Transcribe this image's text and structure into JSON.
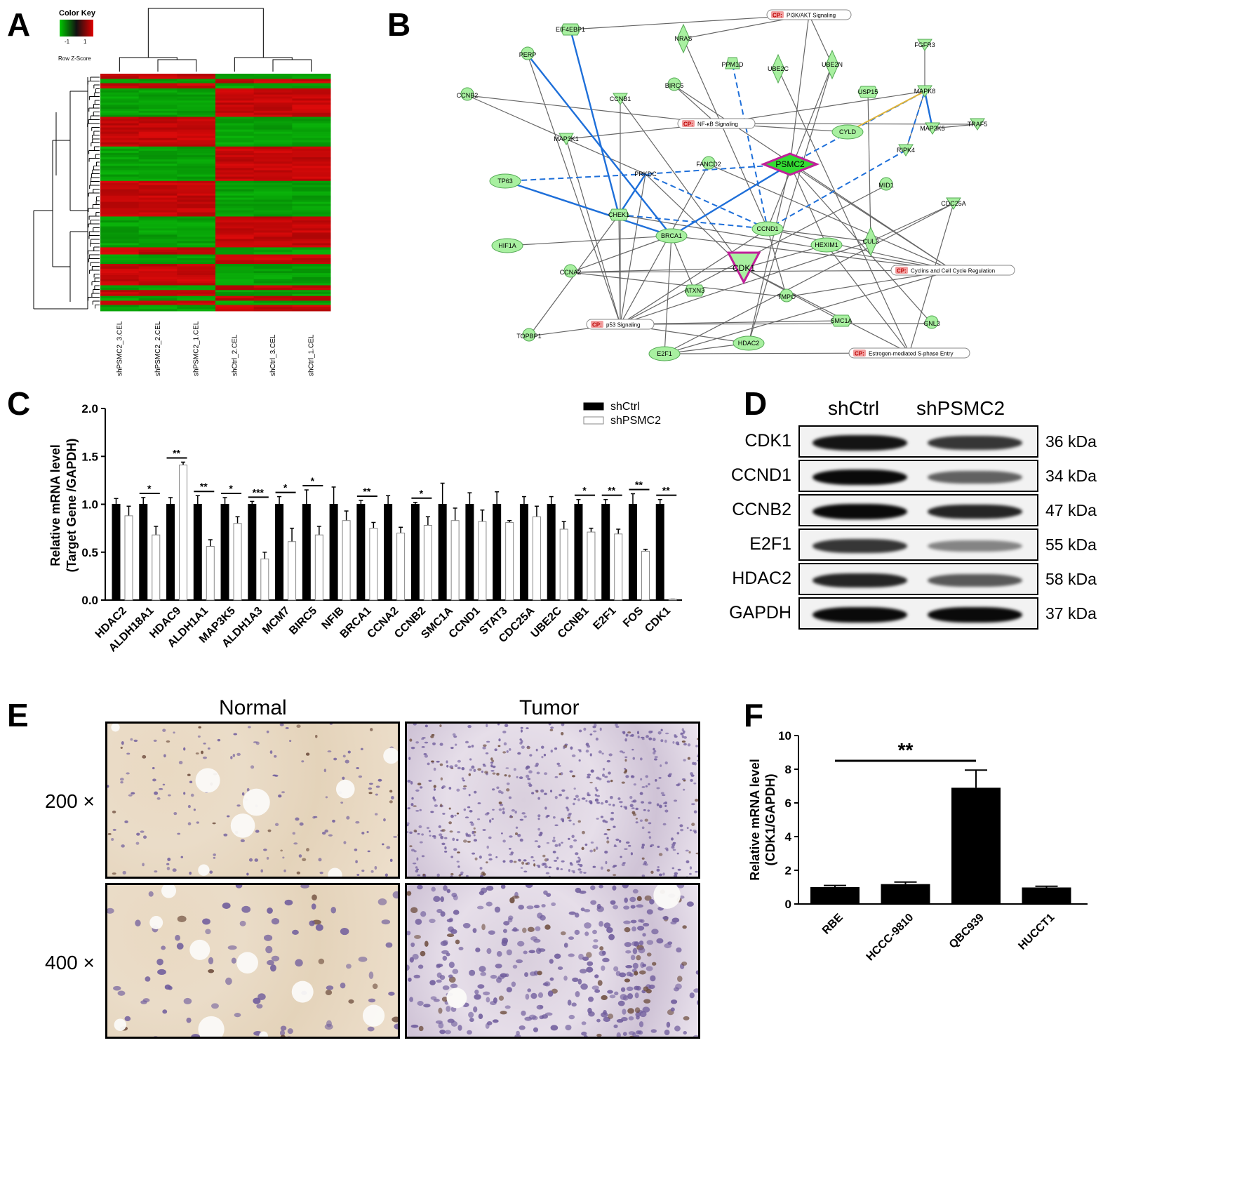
{
  "panels": {
    "a": "A",
    "b": "B",
    "c": "C",
    "d": "D",
    "e": "E",
    "f": "F"
  },
  "heatmap": {
    "color_key_title": "Color Key",
    "color_key_ticks": [
      "-1",
      "1"
    ],
    "color_key_label": "Row Z-Score",
    "columns": [
      "shPSMC2_3.CEL",
      "shPSMC2_2.CEL",
      "shPSMC2_1.CEL",
      "shCtrl_2.CEL",
      "shCtrl_3.CEL",
      "shCtrl_1.CEL"
    ]
  },
  "network": {
    "nodes": [
      {
        "id": "EIF4EBP1",
        "shape": "hex"
      },
      {
        "id": "PERP",
        "shape": "circle"
      },
      {
        "id": "CCNB2",
        "shape": "circle"
      },
      {
        "id": "NRAS",
        "shape": "diamond"
      },
      {
        "id": "PPM1D",
        "shape": "trapezoid"
      },
      {
        "id": "UBE2C",
        "shape": "diamond"
      },
      {
        "id": "UBE2N",
        "shape": "diamond"
      },
      {
        "id": "FGFR3",
        "shape": "triangle"
      },
      {
        "id": "USP15",
        "shape": "hex"
      },
      {
        "id": "MAPK8",
        "shape": "triangle"
      },
      {
        "id": "BIRC5",
        "shape": "circle"
      },
      {
        "id": "CCNB1",
        "shape": "triangle"
      },
      {
        "id": "MAP3K1",
        "shape": "triangle"
      },
      {
        "id": "CYLD",
        "shape": "ellipse"
      },
      {
        "id": "MAP3K5",
        "shape": "triangle"
      },
      {
        "id": "TRAF5",
        "shape": "triangle"
      },
      {
        "id": "RIPK4",
        "shape": "triangle"
      },
      {
        "id": "FANCD2",
        "shape": "circle"
      },
      {
        "id": "PSMC2",
        "shape": "diamond",
        "highlight": true
      },
      {
        "id": "PRKDC",
        "shape": "none"
      },
      {
        "id": "TP63",
        "shape": "ellipse"
      },
      {
        "id": "MID1",
        "shape": "circle"
      },
      {
        "id": "CDC25A",
        "shape": "triangle"
      },
      {
        "id": "CHEK1",
        "shape": "hex"
      },
      {
        "id": "CCND1",
        "shape": "ellipse"
      },
      {
        "id": "BRCA1",
        "shape": "ellipse"
      },
      {
        "id": "HIF1A",
        "shape": "ellipse"
      },
      {
        "id": "HEXIM1",
        "shape": "ellipse"
      },
      {
        "id": "CUL3",
        "shape": "diamond"
      },
      {
        "id": "CDK1",
        "shape": "triangle-down",
        "highlight": true
      },
      {
        "id": "CCNA2",
        "shape": "circle"
      },
      {
        "id": "ATXN3",
        "shape": "hex"
      },
      {
        "id": "TMPO",
        "shape": "circle"
      },
      {
        "id": "SMC1A",
        "shape": "hex"
      },
      {
        "id": "GNL3",
        "shape": "circle"
      },
      {
        "id": "TOPBP1",
        "shape": "circle"
      },
      {
        "id": "HDAC2",
        "shape": "ellipse"
      },
      {
        "id": "E2F1",
        "shape": "ellipse"
      }
    ],
    "pathways": [
      {
        "cp": "CP:",
        "name": "PI3K/AKT Signaling"
      },
      {
        "cp": "CP:",
        "name": "NF-κB Signaling"
      },
      {
        "cp": "CP:",
        "name": "Cyclins and Cell Cycle Regulation"
      },
      {
        "cp": "CP:",
        "name": "p53 Signaling"
      },
      {
        "cp": "CP:",
        "name": "Estrogen-mediated S-phase Entry"
      }
    ]
  },
  "chart_data": [
    {
      "panel": "C",
      "type": "bar",
      "ylabel_line1": "Relative mRNA level",
      "ylabel_line2": "(Target Gene /GAPDH)",
      "ylim": [
        0,
        2.0
      ],
      "yticks": [
        "0.0",
        "0.5",
        "1.0",
        "1.5",
        "2.0"
      ],
      "categories": [
        "HDAC2",
        "ALDH18A1",
        "HDAC9",
        "ALDH1A1",
        "MAP3K5",
        "ALDH1A3",
        "MCM7",
        "BIRC5",
        "NFIB",
        "BRCA1",
        "CCNA2",
        "CCNB2",
        "SMC1A",
        "CCND1",
        "STAT3",
        "CDC25A",
        "UBE2C",
        "CCNB1",
        "E2F1",
        "FOS",
        "CDK1"
      ],
      "series": [
        {
          "name": "shCtrl",
          "color": "#000000",
          "values": [
            1.0,
            1.0,
            1.0,
            1.0,
            1.0,
            1.0,
            1.0,
            1.0,
            1.0,
            1.0,
            1.0,
            1.0,
            1.0,
            1.0,
            1.0,
            1.0,
            1.0,
            1.0,
            1.0,
            1.0,
            1.0
          ],
          "errors": [
            0.06,
            0.07,
            0.07,
            0.09,
            0.07,
            0.03,
            0.08,
            0.15,
            0.18,
            0.04,
            0.09,
            0.02,
            0.22,
            0.12,
            0.13,
            0.08,
            0.08,
            0.05,
            0.05,
            0.11,
            0.05
          ]
        },
        {
          "name": "shPSMC2",
          "color": "#ffffff",
          "values": [
            0.88,
            0.68,
            1.41,
            0.56,
            0.8,
            0.43,
            0.61,
            0.68,
            0.83,
            0.75,
            0.7,
            0.78,
            0.83,
            0.82,
            0.81,
            0.87,
            0.74,
            0.71,
            0.69,
            0.51,
            0.01
          ],
          "errors": [
            0.1,
            0.09,
            0.03,
            0.07,
            0.07,
            0.07,
            0.14,
            0.09,
            0.1,
            0.06,
            0.06,
            0.09,
            0.13,
            0.12,
            0.02,
            0.11,
            0.08,
            0.04,
            0.05,
            0.02,
            0.0
          ]
        }
      ],
      "significance": [
        "",
        "*",
        "**",
        "**",
        "*",
        "***",
        "*",
        "*",
        "",
        "**",
        "",
        "*",
        "",
        "",
        "",
        "",
        "",
        "*",
        "**",
        "**",
        "**"
      ]
    },
    {
      "panel": "F",
      "type": "bar",
      "ylabel_line1": "Relative mRNA level",
      "ylabel_line2": "(CDK1/GAPDH)",
      "ylim": [
        0,
        10
      ],
      "yticks": [
        "0",
        "2",
        "4",
        "6",
        "8",
        "10"
      ],
      "categories": [
        "RBE",
        "HCCC-9810",
        "QBC939",
        "HUCCT1"
      ],
      "values": [
        1.0,
        1.18,
        6.9,
        0.98
      ],
      "errors": [
        0.1,
        0.12,
        1.05,
        0.07
      ],
      "significance": {
        "from": "RBE",
        "to": "QBC939",
        "label": "**"
      }
    }
  ],
  "western": {
    "columns": [
      "shCtrl",
      "shPSMC2"
    ],
    "rows": [
      {
        "protein": "CDK1",
        "kda": "36 kDa",
        "ctrl": 0.95,
        "psmc2": 0.75
      },
      {
        "protein": "CCND1",
        "kda": "34 kDa",
        "ctrl": 1.0,
        "psmc2": 0.5
      },
      {
        "protein": "CCNB2",
        "kda": "47 kDa",
        "ctrl": 1.0,
        "psmc2": 0.85
      },
      {
        "protein": "E2F1",
        "kda": "55 kDa",
        "ctrl": 0.75,
        "psmc2": 0.3
      },
      {
        "protein": "HDAC2",
        "kda": "58 kDa",
        "ctrl": 0.85,
        "psmc2": 0.55
      },
      {
        "protein": "GAPDH",
        "kda": "37 kDa",
        "ctrl": 1.0,
        "psmc2": 1.0
      }
    ]
  },
  "ihc": {
    "column_labels": [
      "Normal",
      "Tumor"
    ],
    "row_labels": [
      "200 ×",
      "400 ×"
    ]
  }
}
